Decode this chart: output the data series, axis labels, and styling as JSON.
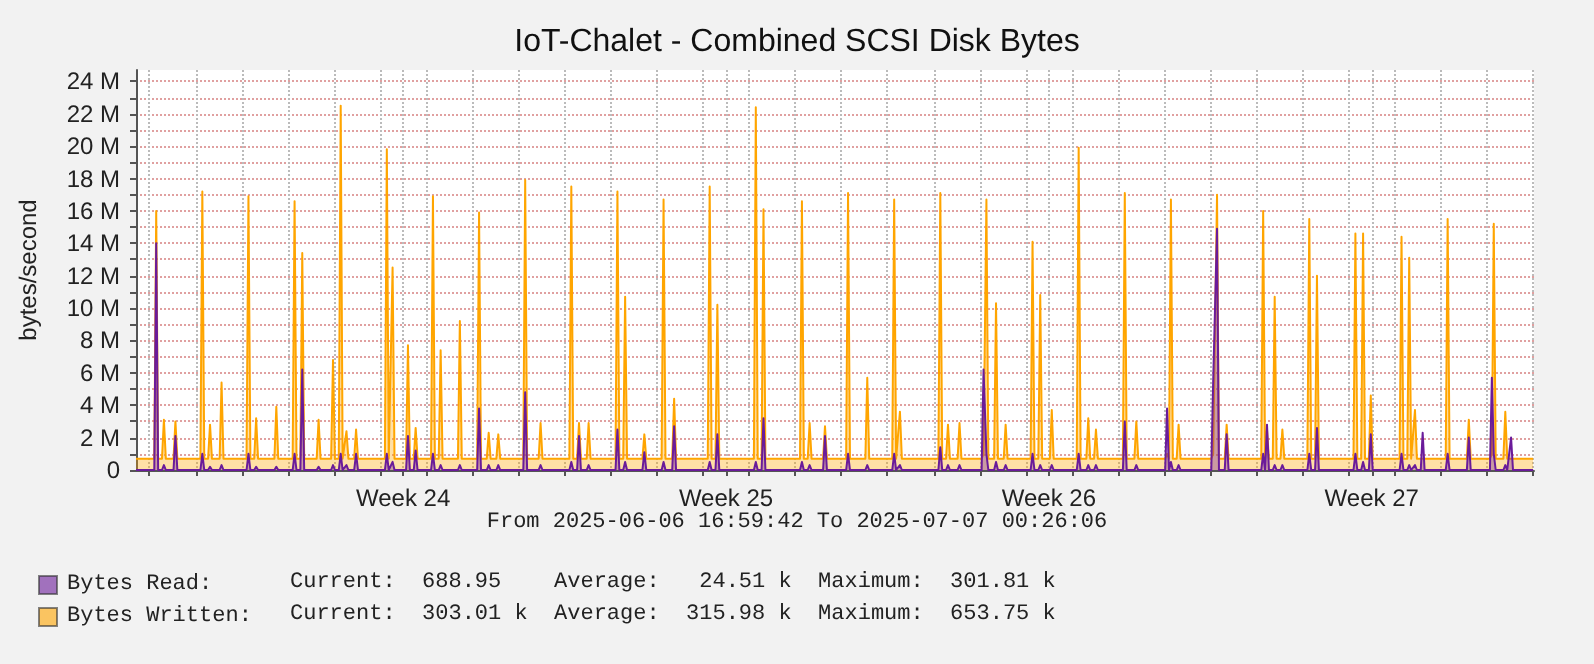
{
  "chart_data": {
    "type": "area",
    "title": "IoT-Chalet - Combined SCSI Disk Bytes",
    "ylabel": "bytes/second",
    "annotations": [
      "From 2025-06-06 16:59:42 To 2025-07-07 00:26:06",
      "Current:  688.95    Average:   24.51 k  Maximum:  301.81 k",
      "Current:  303.01 k  Average:  315.98 k  Maximum:  653.75 k"
    ],
    "xlim": [
      "2025-06-06T16:59",
      "2025-07-07T00:26"
    ],
    "xticks": [
      {
        "value": "2025-06-07T00:00",
        "label": null
      },
      {
        "value": "2025-06-08T00:00",
        "label": null
      },
      {
        "value": "2025-06-09T00:00",
        "label": null
      },
      {
        "value": "2025-06-10T00:00",
        "label": null
      },
      {
        "value": "2025-06-11T00:00",
        "label": null
      },
      {
        "value": "2025-06-12T00:00",
        "label": null
      },
      {
        "value": "2025-06-12T12:00",
        "label": "Week 24"
      },
      {
        "value": "2025-06-13T00:00",
        "label": null
      },
      {
        "value": "2025-06-14T00:00",
        "label": null
      },
      {
        "value": "2025-06-15T00:00",
        "label": null
      },
      {
        "value": "2025-06-16T00:00",
        "label": null
      },
      {
        "value": "2025-06-17T00:00",
        "label": null
      },
      {
        "value": "2025-06-18T00:00",
        "label": null
      },
      {
        "value": "2025-06-19T00:00",
        "label": null
      },
      {
        "value": "2025-06-19T12:00",
        "label": "Week 25"
      },
      {
        "value": "2025-06-20T00:00",
        "label": null
      },
      {
        "value": "2025-06-21T00:00",
        "label": null
      },
      {
        "value": "2025-06-22T00:00",
        "label": null
      },
      {
        "value": "2025-06-23T00:00",
        "label": null
      },
      {
        "value": "2025-06-24T00:00",
        "label": null
      },
      {
        "value": "2025-06-25T00:00",
        "label": null
      },
      {
        "value": "2025-06-26T00:00",
        "label": null
      },
      {
        "value": "2025-06-26T12:00",
        "label": "Week 26"
      },
      {
        "value": "2025-06-27T00:00",
        "label": null
      },
      {
        "value": "2025-06-28T00:00",
        "label": null
      },
      {
        "value": "2025-06-29T00:00",
        "label": null
      },
      {
        "value": "2025-06-30T00:00",
        "label": null
      },
      {
        "value": "2025-07-01T00:00",
        "label": null
      },
      {
        "value": "2025-07-02T00:00",
        "label": null
      },
      {
        "value": "2025-07-03T00:00",
        "label": null
      },
      {
        "value": "2025-07-03T12:00",
        "label": "Week 27"
      },
      {
        "value": "2025-07-04T00:00",
        "label": null
      },
      {
        "value": "2025-07-05T00:00",
        "label": null
      },
      {
        "value": "2025-07-06T00:00",
        "label": null
      },
      {
        "value": "2025-07-07T00:00",
        "label": null
      }
    ],
    "ylim": [
      0,
      24.7
    ],
    "yticks": [
      0,
      {
        "value": 1,
        "label": null
      },
      {
        "value": 2,
        "label": "2 M"
      },
      {
        "value": 3,
        "label": null
      },
      {
        "value": 4,
        "label": "4 M"
      },
      {
        "value": 5,
        "label": null
      },
      {
        "value": 6,
        "label": "6 M"
      },
      {
        "value": 7,
        "label": null
      },
      {
        "value": 8,
        "label": "8 M"
      },
      {
        "value": 9,
        "label": null
      },
      {
        "value": 10,
        "label": "10 M"
      },
      {
        "value": 11,
        "label": null
      },
      {
        "value": 12,
        "label": "12 M"
      },
      {
        "value": 13,
        "label": null
      },
      {
        "value": 14,
        "label": "14 M"
      },
      {
        "value": 15,
        "label": null
      },
      {
        "value": 16,
        "label": "16 M"
      },
      {
        "value": 17,
        "label": null
      },
      {
        "value": 18,
        "label": "18 M"
      },
      {
        "value": 19,
        "label": null
      },
      {
        "value": 20,
        "label": "20 M"
      },
      {
        "value": 21,
        "label": null
      },
      {
        "value": 22,
        "label": "22 M"
      },
      {
        "value": 23,
        "label": null
      },
      {
        "value": 24,
        "label": "24 M"
      }
    ],
    "grid": true,
    "legend": "bottom",
    "x": [
      "2025-06-06T17:00",
      "2025-06-07T02:30",
      "2025-06-07T03:30",
      "2025-06-07T04:30",
      "2025-06-07T06:30",
      "2025-06-07T07:30",
      "2025-06-07T08:30",
      "2025-06-07T12:30",
      "2025-06-07T13:30",
      "2025-06-07T14:30",
      "2025-06-08T02:30",
      "2025-06-08T03:30",
      "2025-06-08T04:30",
      "2025-06-08T06:30",
      "2025-06-08T07:30",
      "2025-06-08T08:30",
      "2025-06-08T12:30",
      "2025-06-08T13:30",
      "2025-06-08T14:30",
      "2025-06-09T02:30",
      "2025-06-09T03:30",
      "2025-06-09T04:30",
      "2025-06-09T06:30",
      "2025-06-09T07:30",
      "2025-06-09T08:30",
      "2025-06-09T17:00",
      "2025-06-09T18:00",
      "2025-06-09T19:00",
      "2025-06-10T02:30",
      "2025-06-10T03:30",
      "2025-06-10T04:30",
      "2025-06-10T06:30",
      "2025-06-10T07:30",
      "2025-06-10T08:30",
      "2025-06-10T15:00",
      "2025-06-10T16:00",
      "2025-06-10T17:00",
      "2025-06-10T22:30",
      "2025-06-10T23:30",
      "2025-06-11T00:30",
      "2025-06-11T02:30",
      "2025-06-11T03:30",
      "2025-06-11T04:30",
      "2025-06-11T06:30",
      "2025-06-11T07:30",
      "2025-06-11T10:30",
      "2025-06-11T11:30",
      "2025-06-11T12:30",
      "2025-06-12T02:30",
      "2025-06-12T03:30",
      "2025-06-12T04:30",
      "2025-06-12T06:30",
      "2025-06-12T07:30",
      "2025-06-12T13:30",
      "2025-06-12T14:30",
      "2025-06-12T15:30",
      "2025-06-12T17:30",
      "2025-06-12T18:30",
      "2025-06-12T19:30",
      "2025-06-13T02:30",
      "2025-06-13T03:30",
      "2025-06-13T04:30",
      "2025-06-13T06:30",
      "2025-06-13T07:30",
      "2025-06-13T08:30",
      "2025-06-13T16:30",
      "2025-06-13T17:30",
      "2025-06-13T18:30",
      "2025-06-14T02:30",
      "2025-06-14T03:30",
      "2025-06-14T04:30",
      "2025-06-14T07:30",
      "2025-06-14T08:30",
      "2025-06-14T09:30",
      "2025-06-14T12:30",
      "2025-06-14T13:30",
      "2025-06-14T14:30",
      "2025-06-15T02:30",
      "2025-06-15T03:30",
      "2025-06-15T04:30",
      "2025-06-15T10:30",
      "2025-06-15T11:30",
      "2025-06-15T12:30",
      "2025-06-16T02:30",
      "2025-06-16T03:30",
      "2025-06-16T04:30",
      "2025-06-16T06:30",
      "2025-06-16T07:30",
      "2025-06-16T08:30",
      "2025-06-16T11:30",
      "2025-06-16T12:30",
      "2025-06-16T13:30",
      "2025-06-17T02:30",
      "2025-06-17T03:30",
      "2025-06-17T04:30",
      "2025-06-17T06:30",
      "2025-06-17T07:30",
      "2025-06-17T08:30",
      "2025-06-17T16:30",
      "2025-06-17T17:30",
      "2025-06-17T18:30",
      "2025-06-18T02:30",
      "2025-06-18T03:30",
      "2025-06-18T04:30",
      "2025-06-18T08:00",
      "2025-06-18T09:00",
      "2025-06-18T10:00",
      "2025-06-19T02:30",
      "2025-06-19T03:30",
      "2025-06-19T04:30",
      "2025-06-19T06:30",
      "2025-06-19T07:30",
      "2025-06-19T08:30",
      "2025-06-20T02:30",
      "2025-06-20T03:30",
      "2025-06-20T04:30",
      "2025-06-20T06:30",
      "2025-06-20T07:30",
      "2025-06-20T08:30",
      "2025-06-21T02:30",
      "2025-06-21T03:30",
      "2025-06-21T04:30",
      "2025-06-21T06:30",
      "2025-06-21T07:30",
      "2025-06-21T08:30",
      "2025-06-21T14:30",
      "2025-06-21T15:30",
      "2025-06-21T16:30",
      "2025-06-22T02:30",
      "2025-06-22T03:30",
      "2025-06-22T04:30",
      "2025-06-22T12:30",
      "2025-06-22T13:30",
      "2025-06-22T14:30",
      "2025-06-23T02:30",
      "2025-06-23T03:30",
      "2025-06-23T04:30",
      "2025-06-23T06:30",
      "2025-06-23T07:30",
      "2025-06-24T02:30",
      "2025-06-24T03:30",
      "2025-06-24T04:30",
      "2025-06-24T06:30",
      "2025-06-24T07:30",
      "2025-06-24T08:30",
      "2025-06-24T12:30",
      "2025-06-24T13:30",
      "2025-06-24T14:30",
      "2025-06-25T01:00",
      "2025-06-25T02:00",
      "2025-06-25T03:30",
      "2025-06-25T04:30",
      "2025-06-25T07:30",
      "2025-06-25T08:30",
      "2025-06-25T09:30",
      "2025-06-25T12:30",
      "2025-06-25T13:30",
      "2025-06-25T14:30",
      "2025-06-26T02:30",
      "2025-06-26T03:30",
      "2025-06-26T04:30",
      "2025-06-26T06:30",
      "2025-06-26T07:30",
      "2025-06-26T08:30",
      "2025-06-26T12:30",
      "2025-06-26T13:30",
      "2025-06-26T14:30",
      "2025-06-27T02:30",
      "2025-06-27T03:30",
      "2025-06-27T04:30",
      "2025-06-27T07:30",
      "2025-06-27T08:30",
      "2025-06-27T09:30",
      "2025-06-27T11:30",
      "2025-06-27T12:30",
      "2025-06-27T13:30",
      "2025-06-28T02:30",
      "2025-06-28T03:30",
      "2025-06-28T04:30",
      "2025-06-28T08:30",
      "2025-06-28T09:30",
      "2025-06-28T10:30",
      "2025-06-29T00:30",
      "2025-06-29T01:30",
      "2025-06-29T02:30",
      "2025-06-29T03:30",
      "2025-06-29T04:30",
      "2025-06-29T06:30",
      "2025-06-29T07:30",
      "2025-06-29T08:30",
      "2025-06-30T00:30",
      "2025-06-30T01:30",
      "2025-06-30T03:30",
      "2025-06-30T04:30",
      "2025-06-30T07:30",
      "2025-06-30T08:30",
      "2025-06-30T09:30",
      "2025-07-01T02:30",
      "2025-07-01T03:30",
      "2025-07-01T04:30",
      "2025-07-01T05:30",
      "2025-07-01T06:30",
      "2025-07-01T08:30",
      "2025-07-01T09:30",
      "2025-07-01T10:30",
      "2025-07-01T12:30",
      "2025-07-01T13:30",
      "2025-07-01T14:30",
      "2025-07-02T02:30",
      "2025-07-02T03:30",
      "2025-07-02T04:30",
      "2025-07-02T06:30",
      "2025-07-02T07:30",
      "2025-07-02T08:30",
      "2025-07-03T02:30",
      "2025-07-03T03:30",
      "2025-07-03T04:30",
      "2025-07-03T06:30",
      "2025-07-03T07:30",
      "2025-07-03T08:30",
      "2025-07-03T10:30",
      "2025-07-03T11:30",
      "2025-07-03T12:30",
      "2025-07-04T02:30",
      "2025-07-04T03:30",
      "2025-07-04T04:30",
      "2025-07-04T06:30",
      "2025-07-04T07:30",
      "2025-07-04T08:30",
      "2025-07-04T10:30",
      "2025-07-04T11:30",
      "2025-07-04T13:30",
      "2025-07-04T14:30",
      "2025-07-04T15:30",
      "2025-07-05T02:30",
      "2025-07-05T03:30",
      "2025-07-05T04:30",
      "2025-07-05T13:30",
      "2025-07-05T14:30",
      "2025-07-05T15:30",
      "2025-07-06T01:30",
      "2025-07-06T02:30",
      "2025-07-06T03:30",
      "2025-07-06T04:30",
      "2025-07-06T08:30",
      "2025-07-06T09:30",
      "2025-07-06T10:30",
      "2025-07-06T12:30",
      "2025-07-06T13:30",
      "2025-07-07T00:00"
    ],
    "series": [
      {
        "name": "Bytes Read:",
        "color": "#6a1b9a",
        "values": [
          0,
          0,
          14.0,
          0,
          0,
          0.3,
          0,
          0,
          2.1,
          0,
          0,
          1.0,
          0,
          0,
          0.2,
          0,
          0,
          0.3,
          0,
          0,
          1.0,
          0,
          0,
          0.2,
          0,
          0,
          0.2,
          0,
          0,
          1.0,
          0,
          0,
          6.2,
          0,
          0,
          0.2,
          0,
          0,
          0.3,
          0,
          0,
          1.0,
          0,
          0.3,
          0,
          0,
          1.0,
          0,
          0,
          1.0,
          0,
          0.5,
          0,
          0,
          2.1,
          0,
          0,
          1.2,
          0,
          0,
          1.0,
          0,
          0,
          0.3,
          0,
          0,
          0.3,
          0,
          0,
          3.8,
          0,
          0,
          0.3,
          0,
          0,
          0.3,
          0,
          0,
          4.8,
          0,
          0,
          0.3,
          0,
          0,
          0.5,
          0,
          0,
          2.1,
          0,
          0,
          0.3,
          0,
          0,
          2.5,
          0,
          0,
          0.5,
          0,
          0,
          1.1,
          0,
          0,
          0.5,
          0,
          0,
          2.7,
          0,
          0,
          0.5,
          0,
          0,
          2.2,
          0,
          0,
          0.5,
          0,
          0,
          3.2,
          0,
          0,
          0.5,
          0,
          0,
          0.3,
          0,
          0,
          2.1,
          0,
          0,
          1.0,
          0,
          0,
          0.3,
          0,
          0,
          1.0,
          0,
          0.3,
          0,
          0,
          1.4,
          0,
          0,
          0.3,
          0,
          0,
          0.3,
          0,
          0,
          6.2,
          1.0,
          0,
          0,
          0.5,
          0,
          0,
          0.3,
          0,
          0,
          1.0,
          0,
          0,
          0.3,
          0,
          0,
          0.3,
          0,
          0,
          1.0,
          0,
          0,
          0.3,
          0,
          0,
          0.3,
          0,
          0,
          3.0,
          0,
          0,
          0.3,
          0,
          0,
          3.8,
          0,
          0.5,
          0,
          0,
          0.3,
          0,
          0,
          5.5,
          14.9,
          0,
          0,
          2.2,
          0,
          0,
          1.0,
          0,
          2.8,
          0,
          0,
          0.3,
          0,
          0,
          0.3,
          0,
          0,
          1.0,
          0,
          0,
          2.6,
          0,
          0,
          1.0,
          0,
          0,
          0.5,
          0,
          0,
          2.2,
          0,
          0,
          1.0,
          0,
          0,
          0.3,
          0,
          0.3,
          0,
          0,
          2.3,
          0,
          0,
          1.0,
          0,
          0,
          2.0,
          0,
          0,
          5.7,
          1.0,
          0,
          0,
          0.3,
          0,
          2.0,
          0,
          0
        ]
      },
      {
        "name": "Bytes Written:",
        "color": "#ffa500",
        "values": [
          0.7,
          0.7,
          16.0,
          0.7,
          0.7,
          3.1,
          0.7,
          0.7,
          3.0,
          0.7,
          0.7,
          17.2,
          0.7,
          0.7,
          2.8,
          0.7,
          0.7,
          5.4,
          0.7,
          0.7,
          16.9,
          0.7,
          0.7,
          3.2,
          0.7,
          0.7,
          3.9,
          0.7,
          0.7,
          16.6,
          0.7,
          0.7,
          13.4,
          0.7,
          0.7,
          3.1,
          0.7,
          0.7,
          6.8,
          0.7,
          0.7,
          22.5,
          0.7,
          2.4,
          0.7,
          0.7,
          2.5,
          0.7,
          0.7,
          19.8,
          0.7,
          12.5,
          0.7,
          0.7,
          7.7,
          0.7,
          0.7,
          2.6,
          0.7,
          0.7,
          16.9,
          0.7,
          0.7,
          7.4,
          0.7,
          0.7,
          9.2,
          0.7,
          0.7,
          15.9,
          0.7,
          0.7,
          2.3,
          0.7,
          0.7,
          2.2,
          0.7,
          0.7,
          17.9,
          0.7,
          0.7,
          2.9,
          0.7,
          0.7,
          17.5,
          0.7,
          0.7,
          2.9,
          0.7,
          0.7,
          2.9,
          0.7,
          0.7,
          17.2,
          0.7,
          0.7,
          10.7,
          0.7,
          0.7,
          2.2,
          0.7,
          0.7,
          16.7,
          0.7,
          0.7,
          4.4,
          0.7,
          0.7,
          17.5,
          0.7,
          0.7,
          10.2,
          0.7,
          0.7,
          22.4,
          0.7,
          0.7,
          16.1,
          0.7,
          0.7,
          16.6,
          0.7,
          0.7,
          2.9,
          0.7,
          0.7,
          2.7,
          0.7,
          0.7,
          17.1,
          0.7,
          0.7,
          5.7,
          0.7,
          0.7,
          16.7,
          0.7,
          3.6,
          0.7,
          0.7,
          17.1,
          0.7,
          0.7,
          2.8,
          0.7,
          0.7,
          2.9,
          0.7,
          0.7,
          1.0,
          16.7,
          0.7,
          0.7,
          10.3,
          0.7,
          0.7,
          2.8,
          0.7,
          0.7,
          14.1,
          0.7,
          0.7,
          10.8,
          0.7,
          0.7,
          3.7,
          0.7,
          0.7,
          19.9,
          0.7,
          0.7,
          3.2,
          0.7,
          0.7,
          2.5,
          0.7,
          0.7,
          17.1,
          0.7,
          0.7,
          3.0,
          0.7,
          0.7,
          1.0,
          0.7,
          16.7,
          0.7,
          0.7,
          2.8,
          0.7,
          0.7,
          1.0,
          17.0,
          0.7,
          0.7,
          2.8,
          0.7,
          0.7,
          16.0,
          0.7,
          2.5,
          0.7,
          0.7,
          10.7,
          0.7,
          0.7,
          2.5,
          0.7,
          0.7,
          15.5,
          0.7,
          0.7,
          12.0,
          0.7,
          0.7,
          14.6,
          0.7,
          0.7,
          14.6,
          0.7,
          0.7,
          4.6,
          0.7,
          0.7,
          14.4,
          0.7,
          0.7,
          13.1,
          0.7,
          3.7,
          0.7,
          0.7,
          0.7,
          0.7,
          0.7,
          15.5,
          0.7,
          0.7,
          3.1,
          0.7,
          0.7,
          1.0,
          15.2,
          0.7,
          0.7,
          3.6,
          0.7,
          0.7,
          0.7,
          0.7
        ]
      }
    ]
  }
}
